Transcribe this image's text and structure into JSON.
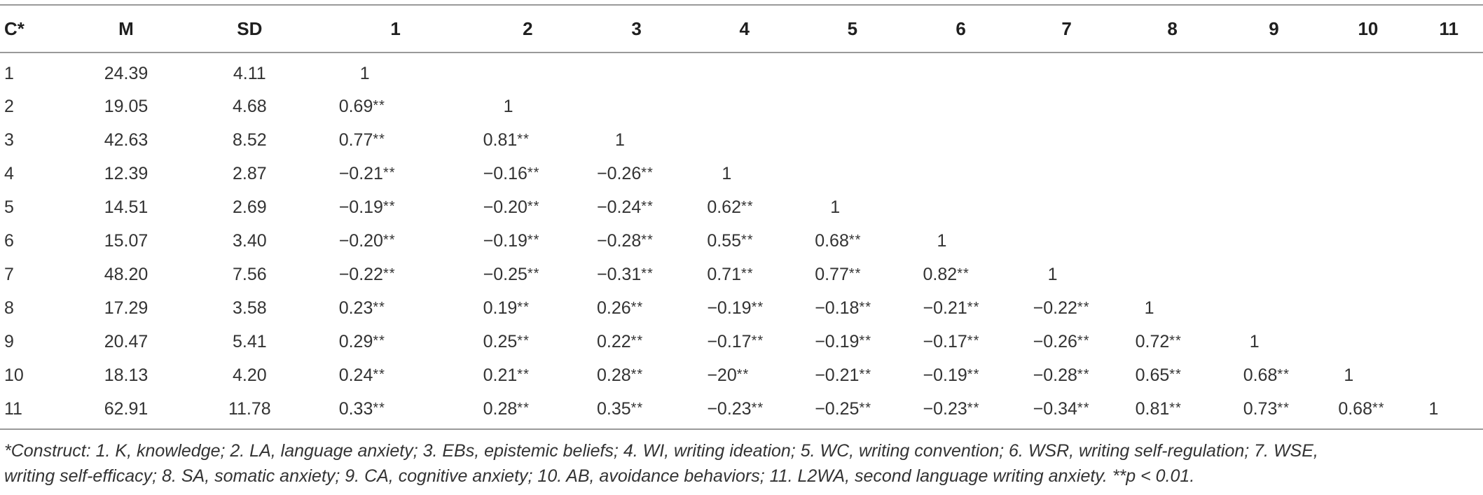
{
  "table": {
    "headers": [
      "C*",
      "M",
      "SD",
      "1",
      "2",
      "3",
      "4",
      "5",
      "6",
      "7",
      "8",
      "9",
      "10",
      "11"
    ],
    "rows": [
      [
        "1",
        "24.39",
        "4.11",
        "1",
        "",
        "",
        "",
        "",
        "",
        "",
        "",
        "",
        "",
        ""
      ],
      [
        "2",
        "19.05",
        "4.68",
        "0.69**",
        "1",
        "",
        "",
        "",
        "",
        "",
        "",
        "",
        "",
        ""
      ],
      [
        "3",
        "42.63",
        "8.52",
        "0.77**",
        "0.81**",
        "1",
        "",
        "",
        "",
        "",
        "",
        "",
        "",
        ""
      ],
      [
        "4",
        "12.39",
        "2.87",
        "−0.21**",
        "−0.16**",
        "−0.26**",
        "1",
        "",
        "",
        "",
        "",
        "",
        "",
        ""
      ],
      [
        "5",
        "14.51",
        "2.69",
        "−0.19**",
        "−0.20**",
        "−0.24**",
        "0.62**",
        "1",
        "",
        "",
        "",
        "",
        "",
        ""
      ],
      [
        "6",
        "15.07",
        "3.40",
        "−0.20**",
        "−0.19**",
        "−0.28**",
        "0.55**",
        "0.68**",
        "1",
        "",
        "",
        "",
        "",
        ""
      ],
      [
        "7",
        "48.20",
        "7.56",
        "−0.22**",
        "−0.25**",
        "−0.31**",
        "0.71**",
        "0.77**",
        "0.82**",
        "1",
        "",
        "",
        "",
        ""
      ],
      [
        "8",
        "17.29",
        "3.58",
        "0.23**",
        "0.19**",
        "0.26**",
        "−0.19**",
        "−0.18**",
        "−0.21**",
        "−0.22**",
        "1",
        "",
        "",
        ""
      ],
      [
        "9",
        "20.47",
        "5.41",
        "0.29**",
        "0.25**",
        "0.22**",
        "−0.17**",
        "−0.19**",
        "−0.17**",
        "−0.26**",
        "0.72**",
        "1",
        "",
        ""
      ],
      [
        "10",
        "18.13",
        "4.20",
        "0.24**",
        "0.21**",
        "0.28**",
        "−20**",
        "−0.21**",
        "−0.19**",
        "−0.28**",
        "0.65**",
        "0.68**",
        "1",
        ""
      ],
      [
        "11",
        "62.91",
        "11.78",
        "0.33**",
        "0.28**",
        "0.35**",
        "−0.23**",
        "−0.25**",
        "−0.23**",
        "−0.34**",
        "0.81**",
        "0.73**",
        "0.68**",
        "1"
      ]
    ]
  },
  "footnote": {
    "line1": "*Construct: 1. K, knowledge; 2. LA, language anxiety; 3. EBs, epistemic beliefs; 4. WI, writing ideation; 5. WC, writing convention; 6. WSR, writing self-regulation; 7. WSE,",
    "line2": "writing self-efficacy; 8. SA, somatic anxiety; 9. CA, cognitive anxiety; 10. AB, avoidance behaviors; 11. L2WA, second language writing anxiety. **p < 0.01."
  }
}
